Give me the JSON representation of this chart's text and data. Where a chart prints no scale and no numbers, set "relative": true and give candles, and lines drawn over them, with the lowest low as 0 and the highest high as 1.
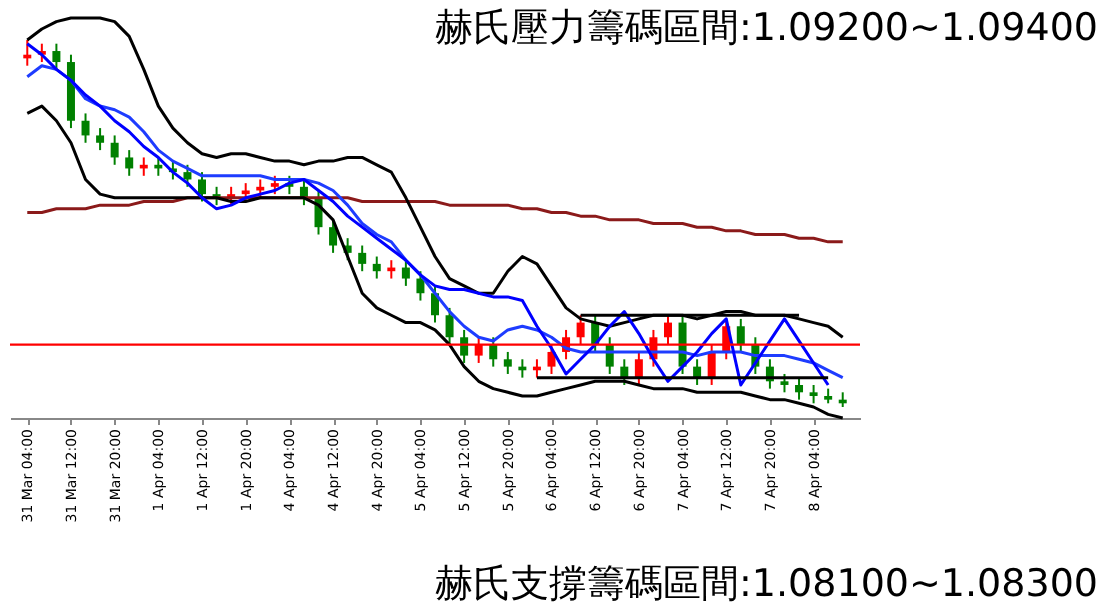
{
  "chart_data": {
    "type": "candlestick",
    "relative": true,
    "categories": [
      "31 Mar 04:00",
      null,
      null,
      "31 Mar 12:00",
      null,
      null,
      "31 Mar 20:00",
      null,
      null,
      "1 Apr 04:00",
      null,
      null,
      "1 Apr 12:00",
      null,
      null,
      "1 Apr 20:00",
      null,
      null,
      "4 Apr 04:00",
      null,
      null,
      "4 Apr 12:00",
      null,
      null,
      "4 Apr 20:00",
      null,
      null,
      "5 Apr 04:00",
      null,
      null,
      "5 Apr 12:00",
      null,
      null,
      "5 Apr 20:00",
      null,
      null,
      "6 Apr 04:00",
      null,
      null,
      "6 Apr 12:00",
      null,
      null,
      "6 Apr 20:00",
      null,
      null,
      "7 Apr 04:00",
      null,
      null,
      "7 Apr 12:00",
      null,
      null,
      "7 Apr 20:00",
      null,
      null,
      "8 Apr 04:00",
      null,
      null
    ],
    "ohlc": [
      [
        0.95,
        1.0,
        0.93,
        0.96
      ],
      [
        0.96,
        0.99,
        0.94,
        0.97
      ],
      [
        0.97,
        0.99,
        0.92,
        0.94
      ],
      [
        0.94,
        0.96,
        0.76,
        0.78
      ],
      [
        0.78,
        0.8,
        0.72,
        0.74
      ],
      [
        0.74,
        0.76,
        0.7,
        0.72
      ],
      [
        0.72,
        0.74,
        0.66,
        0.68
      ],
      [
        0.68,
        0.7,
        0.63,
        0.65
      ],
      [
        0.65,
        0.68,
        0.63,
        0.66
      ],
      [
        0.66,
        0.68,
        0.63,
        0.65
      ],
      [
        0.65,
        0.67,
        0.62,
        0.64
      ],
      [
        0.64,
        0.66,
        0.6,
        0.62
      ],
      [
        0.62,
        0.64,
        0.56,
        0.58
      ],
      [
        0.58,
        0.6,
        0.55,
        0.57
      ],
      [
        0.57,
        0.6,
        0.55,
        0.58
      ],
      [
        0.58,
        0.61,
        0.56,
        0.59
      ],
      [
        0.59,
        0.62,
        0.57,
        0.6
      ],
      [
        0.6,
        0.63,
        0.58,
        0.61
      ],
      [
        0.61,
        0.63,
        0.58,
        0.6
      ],
      [
        0.6,
        0.62,
        0.55,
        0.57
      ],
      [
        0.57,
        0.59,
        0.47,
        0.49
      ],
      [
        0.49,
        0.51,
        0.42,
        0.44
      ],
      [
        0.44,
        0.46,
        0.4,
        0.42
      ],
      [
        0.42,
        0.44,
        0.37,
        0.39
      ],
      [
        0.39,
        0.41,
        0.35,
        0.37
      ],
      [
        0.37,
        0.4,
        0.35,
        0.38
      ],
      [
        0.38,
        0.4,
        0.33,
        0.35
      ],
      [
        0.35,
        0.37,
        0.29,
        0.31
      ],
      [
        0.31,
        0.33,
        0.23,
        0.25
      ],
      [
        0.25,
        0.27,
        0.17,
        0.19
      ],
      [
        0.19,
        0.21,
        0.12,
        0.14
      ],
      [
        0.14,
        0.19,
        0.12,
        0.17
      ],
      [
        0.17,
        0.19,
        0.11,
        0.13
      ],
      [
        0.13,
        0.15,
        0.09,
        0.11
      ],
      [
        0.11,
        0.13,
        0.08,
        0.1
      ],
      [
        0.1,
        0.13,
        0.08,
        0.11
      ],
      [
        0.11,
        0.17,
        0.09,
        0.15
      ],
      [
        0.15,
        0.21,
        0.13,
        0.19
      ],
      [
        0.19,
        0.25,
        0.17,
        0.23
      ],
      [
        0.23,
        0.25,
        0.15,
        0.17
      ],
      [
        0.17,
        0.19,
        0.09,
        0.11
      ],
      [
        0.11,
        0.13,
        0.06,
        0.08
      ],
      [
        0.08,
        0.15,
        0.06,
        0.13
      ],
      [
        0.13,
        0.21,
        0.11,
        0.19
      ],
      [
        0.19,
        0.25,
        0.17,
        0.23
      ],
      [
        0.23,
        0.25,
        0.09,
        0.11
      ],
      [
        0.11,
        0.13,
        0.06,
        0.08
      ],
      [
        0.08,
        0.17,
        0.06,
        0.15
      ],
      [
        0.15,
        0.24,
        0.13,
        0.22
      ],
      [
        0.22,
        0.24,
        0.15,
        0.17
      ],
      [
        0.17,
        0.19,
        0.09,
        0.11
      ],
      [
        0.11,
        0.13,
        0.05,
        0.07
      ],
      [
        0.07,
        0.09,
        0.04,
        0.06
      ],
      [
        0.06,
        0.08,
        0.02,
        0.04
      ],
      [
        0.04,
        0.06,
        0.01,
        0.03
      ],
      [
        0.03,
        0.05,
        0.01,
        0.02
      ],
      [
        0.02,
        0.04,
        0.0,
        0.01
      ]
    ],
    "colors": [
      "#ff0000",
      "#ff0000",
      "#008000",
      "#008000",
      "#008000",
      "#008000",
      "#008000",
      "#008000",
      "#ff0000",
      "#008000",
      "#008000",
      "#008000",
      "#008000",
      "#008000",
      "#ff0000",
      "#ff0000",
      "#ff0000",
      "#ff0000",
      "#008000",
      "#008000",
      "#008000",
      "#008000",
      "#008000",
      "#008000",
      "#008000",
      "#ff0000",
      "#008000",
      "#008000",
      "#008000",
      "#008000",
      "#008000",
      "#ff0000",
      "#008000",
      "#008000",
      "#008000",
      "#ff0000",
      "#ff0000",
      "#ff0000",
      "#ff0000",
      "#008000",
      "#008000",
      "#008000",
      "#ff0000",
      "#ff0000",
      "#ff0000",
      "#008000",
      "#008000",
      "#ff0000",
      "#ff0000",
      "#008000",
      "#008000",
      "#008000",
      "#008000",
      "#008000",
      "#008000",
      "#008000",
      "#008000"
    ],
    "series": [
      {
        "type": "line",
        "color": "#8b1a1a",
        "values": [
          0.53,
          0.53,
          0.54,
          0.54,
          0.54,
          0.55,
          0.55,
          0.55,
          0.56,
          0.56,
          0.56,
          0.57,
          0.57,
          0.57,
          0.57,
          0.57,
          0.57,
          0.57,
          0.57,
          0.57,
          0.57,
          0.57,
          0.57,
          0.56,
          0.56,
          0.56,
          0.56,
          0.56,
          0.56,
          0.55,
          0.55,
          0.55,
          0.55,
          0.55,
          0.54,
          0.54,
          0.53,
          0.53,
          0.52,
          0.52,
          0.51,
          0.51,
          0.51,
          0.5,
          0.5,
          0.5,
          0.49,
          0.49,
          0.48,
          0.48,
          0.47,
          0.47,
          0.47,
          0.46,
          0.46,
          0.45,
          0.45
        ]
      },
      {
        "type": "line",
        "color": "#000000",
        "values": [
          1.0,
          1.03,
          1.05,
          1.06,
          1.06,
          1.06,
          1.05,
          1.01,
          0.92,
          0.82,
          0.76,
          0.72,
          0.69,
          0.68,
          0.69,
          0.69,
          0.68,
          0.67,
          0.67,
          0.66,
          0.67,
          0.67,
          0.68,
          0.68,
          0.66,
          0.64,
          0.57,
          0.49,
          0.41,
          0.35,
          0.33,
          0.31,
          0.31,
          0.37,
          0.41,
          0.39,
          0.33,
          0.27,
          0.24,
          0.23,
          0.22,
          0.23,
          0.24,
          0.25,
          0.25,
          0.25,
          0.24,
          0.25,
          0.26,
          0.26,
          0.25,
          0.25,
          0.25,
          0.24,
          0.23,
          0.22,
          0.19
        ]
      },
      {
        "type": "line",
        "color": "#000000",
        "values": [
          0.8,
          0.82,
          0.78,
          0.72,
          0.62,
          0.58,
          0.57,
          0.57,
          0.57,
          0.57,
          0.57,
          0.57,
          0.57,
          0.57,
          0.56,
          0.56,
          0.57,
          0.57,
          0.57,
          0.57,
          0.55,
          0.51,
          0.41,
          0.31,
          0.27,
          0.25,
          0.23,
          0.23,
          0.21,
          0.17,
          0.11,
          0.07,
          0.05,
          0.04,
          0.03,
          0.03,
          0.04,
          0.05,
          0.06,
          0.07,
          0.07,
          0.07,
          0.06,
          0.05,
          0.05,
          0.05,
          0.04,
          0.04,
          0.04,
          0.04,
          0.03,
          0.02,
          0.02,
          0.01,
          0.0,
          -0.02,
          -0.03
        ]
      },
      {
        "type": "line",
        "color": "#1e3cff",
        "values": [
          0.9,
          0.93,
          0.92,
          0.89,
          0.84,
          0.82,
          0.81,
          0.79,
          0.75,
          0.7,
          0.67,
          0.65,
          0.63,
          0.63,
          0.63,
          0.63,
          0.63,
          0.62,
          0.62,
          0.62,
          0.61,
          0.59,
          0.55,
          0.5,
          0.47,
          0.45,
          0.4,
          0.36,
          0.31,
          0.26,
          0.22,
          0.19,
          0.18,
          0.21,
          0.22,
          0.21,
          0.19,
          0.16,
          0.15,
          0.15,
          0.15,
          0.15,
          0.15,
          0.15,
          0.15,
          0.15,
          0.14,
          0.15,
          0.15,
          0.15,
          0.14,
          0.14,
          0.14,
          0.13,
          0.12,
          0.1,
          0.08
        ]
      },
      {
        "type": "line",
        "color": "#0000ff",
        "values": [
          0.99,
          0.96,
          0.92,
          0.89,
          0.85,
          0.82,
          0.78,
          0.75,
          0.71,
          0.68,
          0.64,
          0.61,
          0.57,
          0.54,
          0.55,
          0.57,
          0.58,
          0.59,
          0.61,
          0.62,
          0.59,
          0.56,
          0.52,
          0.49,
          0.46,
          0.43,
          0.4,
          0.36,
          0.33,
          0.32,
          0.32,
          0.31,
          0.3,
          0.3,
          0.29,
          0.22,
          0.16,
          0.09,
          0.13,
          0.17,
          0.22,
          0.26,
          0.2,
          0.13,
          0.07,
          0.11,
          0.15,
          0.2,
          0.24,
          0.06,
          0.12,
          0.18,
          0.24,
          0.18,
          0.12,
          0.06,
          null
        ]
      },
      {
        "type": "line",
        "color": "#000000",
        "values": [
          null,
          null,
          null,
          null,
          null,
          null,
          null,
          null,
          null,
          null,
          null,
          null,
          null,
          null,
          null,
          null,
          null,
          null,
          null,
          null,
          null,
          null,
          null,
          null,
          null,
          null,
          null,
          null,
          null,
          null,
          null,
          null,
          null,
          null,
          null,
          null,
          null,
          null,
          0.25,
          0.25,
          0.25,
          0.25,
          0.25,
          0.25,
          0.25,
          0.25,
          0.25,
          0.25,
          0.25,
          0.25,
          0.25,
          0.25,
          0.25,
          0.25,
          null,
          null,
          null
        ]
      },
      {
        "type": "line",
        "color": "#000000",
        "values": [
          null,
          null,
          null,
          null,
          null,
          null,
          null,
          null,
          null,
          null,
          null,
          null,
          null,
          null,
          null,
          null,
          null,
          null,
          null,
          null,
          null,
          null,
          null,
          null,
          null,
          null,
          null,
          null,
          null,
          null,
          null,
          null,
          null,
          null,
          null,
          0.08,
          0.08,
          0.08,
          0.08,
          0.08,
          0.08,
          0.08,
          0.08,
          0.08,
          0.08,
          0.08,
          0.08,
          0.08,
          0.08,
          0.08,
          0.08,
          0.08,
          0.08,
          0.08,
          0.08,
          0.08,
          null
        ]
      }
    ],
    "ref_lines": [
      {
        "axis": "y",
        "value": 0.17,
        "color": "#ff0000"
      }
    ],
    "annotations": [
      "赫氏壓力籌碼區間:1.09200~1.09400",
      "赫氏支撐籌碼區間:1.08100~1.08300"
    ]
  }
}
